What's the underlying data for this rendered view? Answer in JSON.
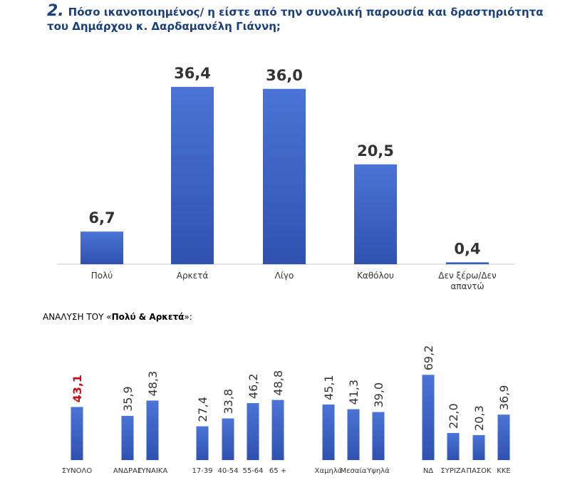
{
  "chart_data": [
    {
      "type": "bar",
      "number": "2.",
      "title": "Πόσο ικανοποιημένος/ η είστε από την συνολική παρουσία και δραστηριότητα του Δημάρχου κ. Δαρδαμανέλη Γιάννη;",
      "categories": [
        "Πολύ",
        "Αρκετά",
        "Λίγο",
        "Καθόλου",
        "Δεν ξέρω/Δεν απαντώ"
      ],
      "values": [
        6.7,
        36.4,
        36.0,
        20.5,
        0.4
      ],
      "value_labels": [
        "6,7",
        "36,4",
        "36,0",
        "20,5",
        "0,4"
      ],
      "color": "#3a62c4"
    },
    {
      "type": "bar",
      "title_prefix": "ΑΝΑΛΥΣΗ ΤΟΥ «",
      "title_emphasis": "Πολύ & Αρκετά",
      "title_suffix": "»:",
      "categories": [
        "ΣΥΝΟΛΟ",
        "ΑΝΔΡΑΣ",
        "ΓΥΝΑΙΚΑ",
        "17-39",
        "40-54",
        "55-64",
        "65 +",
        "Χαμηλά",
        "Μεσαία",
        "Υψηλά",
        "ΝΔ",
        "ΣΥΡΙΖΑ",
        "ΠΑΣΟΚ",
        "ΚΚΕ"
      ],
      "values": [
        43.1,
        35.9,
        48.3,
        27.4,
        33.8,
        46.2,
        48.8,
        45.1,
        41.3,
        39.0,
        69.2,
        22.0,
        20.3,
        36.9
      ],
      "value_labels": [
        "43,1",
        "35,9",
        "48,3",
        "27,4",
        "33,8",
        "46,2",
        "48,8",
        "45,1",
        "41,3",
        "39,0",
        "69,2",
        "22,0",
        "20,3",
        "36,9"
      ],
      "color": "#3a62c4",
      "highlight_color": "#c0141c"
    }
  ]
}
